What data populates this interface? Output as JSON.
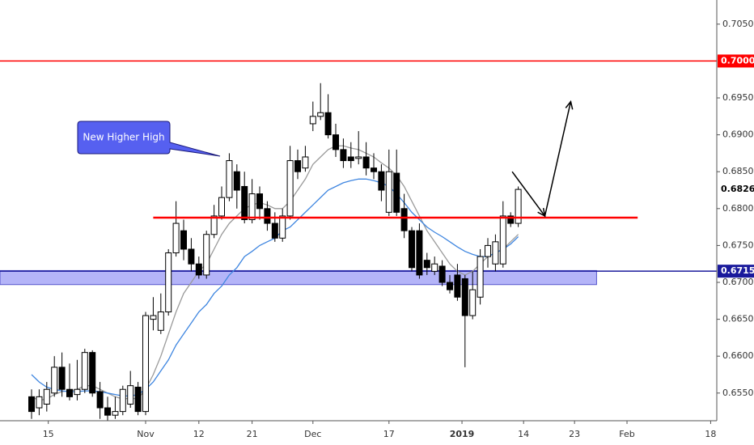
{
  "chart_data": {
    "type": "candlestick",
    "x": [
      -15,
      -14,
      -13,
      -12,
      -11,
      -10,
      -9,
      -8,
      -7,
      -6,
      -5,
      -4,
      -3,
      -2,
      -1,
      0,
      1,
      2,
      3,
      4,
      5,
      6,
      7,
      8,
      9,
      10,
      11,
      12,
      13,
      14,
      15,
      16,
      17,
      18,
      19,
      20,
      21,
      22,
      23,
      24,
      25,
      26,
      27,
      28,
      29,
      30,
      31,
      32,
      33,
      34,
      35,
      36,
      37,
      38,
      39,
      40,
      41,
      42,
      43,
      44,
      45,
      46,
      47,
      48,
      49
    ],
    "open": [
      0.6545,
      0.653,
      0.6535,
      0.655,
      0.6585,
      0.6555,
      0.6548,
      0.6555,
      0.6605,
      0.6552,
      0.653,
      0.652,
      0.6525,
      0.6535,
      0.6558,
      0.6525,
      0.665,
      0.6635,
      0.666,
      0.674,
      0.677,
      0.6745,
      0.6725,
      0.671,
      0.6765,
      0.679,
      0.6815,
      0.685,
      0.683,
      0.6785,
      0.682,
      0.68,
      0.678,
      0.676,
      0.679,
      0.6865,
      0.6855,
      0.6915,
      0.6925,
      0.693,
      0.69,
      0.688,
      0.687,
      0.6868,
      0.687,
      0.6855,
      0.685,
      0.6795,
      0.6848,
      0.68,
      0.677,
      0.677,
      0.673,
      0.6715,
      0.6722,
      0.67,
      0.671,
      0.6705,
      0.6655,
      0.668,
      0.6735,
      0.6725,
      0.6725,
      0.679,
      0.678
    ],
    "high": [
      0.6555,
      0.6555,
      0.6565,
      0.66,
      0.6605,
      0.659,
      0.6595,
      0.661,
      0.6608,
      0.6565,
      0.6545,
      0.6545,
      0.656,
      0.658,
      0.6565,
      0.666,
      0.668,
      0.6685,
      0.6745,
      0.681,
      0.6785,
      0.676,
      0.6735,
      0.677,
      0.6805,
      0.683,
      0.6875,
      0.686,
      0.685,
      0.684,
      0.683,
      0.681,
      0.6795,
      0.68,
      0.6885,
      0.688,
      0.6885,
      0.6945,
      0.697,
      0.6955,
      0.6915,
      0.6895,
      0.689,
      0.6905,
      0.689,
      0.6875,
      0.686,
      0.688,
      0.688,
      0.682,
      0.6775,
      0.678,
      0.674,
      0.6735,
      0.673,
      0.671,
      0.6725,
      0.671,
      0.6715,
      0.6745,
      0.676,
      0.6765,
      0.681,
      0.6795,
      0.683
    ],
    "low": [
      0.6515,
      0.652,
      0.6525,
      0.6545,
      0.6545,
      0.654,
      0.654,
      0.655,
      0.6545,
      0.6515,
      0.6512,
      0.6515,
      0.652,
      0.653,
      0.652,
      0.652,
      0.6635,
      0.663,
      0.6655,
      0.6735,
      0.673,
      0.6715,
      0.6705,
      0.6705,
      0.676,
      0.6785,
      0.681,
      0.68,
      0.678,
      0.678,
      0.6785,
      0.677,
      0.6755,
      0.6755,
      0.6785,
      0.684,
      0.685,
      0.6905,
      0.692,
      0.6895,
      0.687,
      0.6855,
      0.6855,
      0.686,
      0.6845,
      0.684,
      0.681,
      0.679,
      0.679,
      0.676,
      0.6715,
      0.6705,
      0.671,
      0.671,
      0.6695,
      0.6685,
      0.6675,
      0.6585,
      0.665,
      0.667,
      0.672,
      0.6715,
      0.672,
      0.6775,
      0.6775
    ],
    "close": [
      0.6525,
      0.6545,
      0.6555,
      0.6585,
      0.6555,
      0.6545,
      0.6555,
      0.6605,
      0.655,
      0.653,
      0.652,
      0.6525,
      0.6555,
      0.656,
      0.6525,
      0.6655,
      0.6655,
      0.666,
      0.674,
      0.678,
      0.6745,
      0.6725,
      0.671,
      0.6765,
      0.679,
      0.6815,
      0.6865,
      0.6825,
      0.6785,
      0.682,
      0.68,
      0.678,
      0.676,
      0.679,
      0.6865,
      0.685,
      0.687,
      0.6925,
      0.693,
      0.69,
      0.688,
      0.6865,
      0.6865,
      0.687,
      0.6855,
      0.685,
      0.6825,
      0.685,
      0.6795,
      0.677,
      0.672,
      0.671,
      0.672,
      0.6725,
      0.67,
      0.669,
      0.668,
      0.6655,
      0.669,
      0.6735,
      0.675,
      0.6755,
      0.679,
      0.678,
      0.6826
    ],
    "overlays": [
      {
        "color": "#9a9a9a",
        "values": [
          0.6545,
          0.654,
          0.6542,
          0.6548,
          0.6552,
          0.6553,
          0.6555,
          0.656,
          0.656,
          0.6555,
          0.655,
          0.6545,
          0.6542,
          0.6543,
          0.6542,
          0.6555,
          0.6575,
          0.66,
          0.663,
          0.666,
          0.6685,
          0.67,
          0.6715,
          0.6725,
          0.6745,
          0.6765,
          0.678,
          0.679,
          0.68,
          0.6805,
          0.6808,
          0.6805,
          0.68,
          0.68,
          0.681,
          0.6825,
          0.684,
          0.686,
          0.687,
          0.688,
          0.6885,
          0.6885,
          0.6882,
          0.688,
          0.6875,
          0.687,
          0.6862,
          0.6855,
          0.6845,
          0.683,
          0.681,
          0.679,
          0.677,
          0.6755,
          0.674,
          0.6725,
          0.6715,
          0.671,
          0.6715,
          0.6725,
          0.6735,
          0.674,
          0.6745,
          0.6755,
          0.6765
        ]
      },
      {
        "color": "#3f86e0",
        "values": [
          0.6575,
          0.6565,
          0.6558,
          0.6555,
          0.6553,
          0.6552,
          0.6552,
          0.6553,
          0.6553,
          0.6552,
          0.655,
          0.6548,
          0.6546,
          0.6546,
          0.6548,
          0.6555,
          0.6565,
          0.658,
          0.6595,
          0.6615,
          0.663,
          0.6645,
          0.666,
          0.667,
          0.6685,
          0.6695,
          0.671,
          0.672,
          0.6735,
          0.6742,
          0.675,
          0.6755,
          0.676,
          0.677,
          0.6775,
          0.6785,
          0.6795,
          0.6805,
          0.6815,
          0.6825,
          0.683,
          0.6835,
          0.6838,
          0.684,
          0.684,
          0.6838,
          0.6835,
          0.683,
          0.682,
          0.6808,
          0.6795,
          0.6785,
          0.6775,
          0.6768,
          0.6762,
          0.6755,
          0.6748,
          0.6742,
          0.6738,
          0.6735,
          0.6735,
          0.674,
          0.6745,
          0.6752,
          0.6762
        ]
      }
    ],
    "xlim": [
      -19.15,
      75
    ],
    "xticks": [
      {
        "value": -12.8,
        "label": "15"
      },
      {
        "value": 0,
        "label": "Nov"
      },
      {
        "value": 7,
        "label": "12"
      },
      {
        "value": 14,
        "label": "21"
      },
      {
        "value": 22,
        "label": "Dec"
      },
      {
        "value": 32,
        "label": "17"
      },
      {
        "value": 41.6,
        "label": "2019"
      },
      {
        "value": 49.7,
        "label": "14"
      },
      {
        "value": 56.4,
        "label": "23"
      },
      {
        "value": 63.3,
        "label": "Feb"
      },
      {
        "value": 74.3,
        "label": "18"
      }
    ],
    "ylim": [
      0.65125,
      0.70827
    ],
    "yticks": [
      {
        "value": 0.655,
        "label": "0.65500"
      },
      {
        "value": 0.66,
        "label": "0.66000"
      },
      {
        "value": 0.665,
        "label": "0.66500"
      },
      {
        "value": 0.67,
        "label": "0.67000"
      },
      {
        "value": 0.675,
        "label": "0.67500"
      },
      {
        "value": 0.68,
        "label": "0.68000"
      },
      {
        "value": 0.685,
        "label": "0.68500"
      },
      {
        "value": 0.69,
        "label": "0.69000"
      },
      {
        "value": 0.695,
        "label": "0.69500"
      },
      {
        "value": 0.705,
        "label": "0.70500"
      }
    ],
    "hlines": [
      {
        "value": 0.7,
        "label": "0.70000",
        "color": "#ff0000"
      },
      {
        "value": 0.67152,
        "label": "0.67152",
        "color": "#1a1a9c"
      }
    ],
    "last_price": {
      "value": 0.68262,
      "label": "0.68262"
    },
    "zone": {
      "from": 0.6697,
      "to": 0.6716,
      "x": [
        -19.15,
        59.3
      ],
      "color": "#9b9bf5"
    },
    "support": {
      "value": 0.67877,
      "x": [
        1,
        64.7
      ],
      "color": "#ff0000"
    },
    "arrow": {
      "x": [
        48.2,
        52.5,
        55.9
      ],
      "y": [
        0.685,
        0.679,
        0.6945
      ]
    },
    "callout": {
      "text": "New Higher High"
    }
  }
}
